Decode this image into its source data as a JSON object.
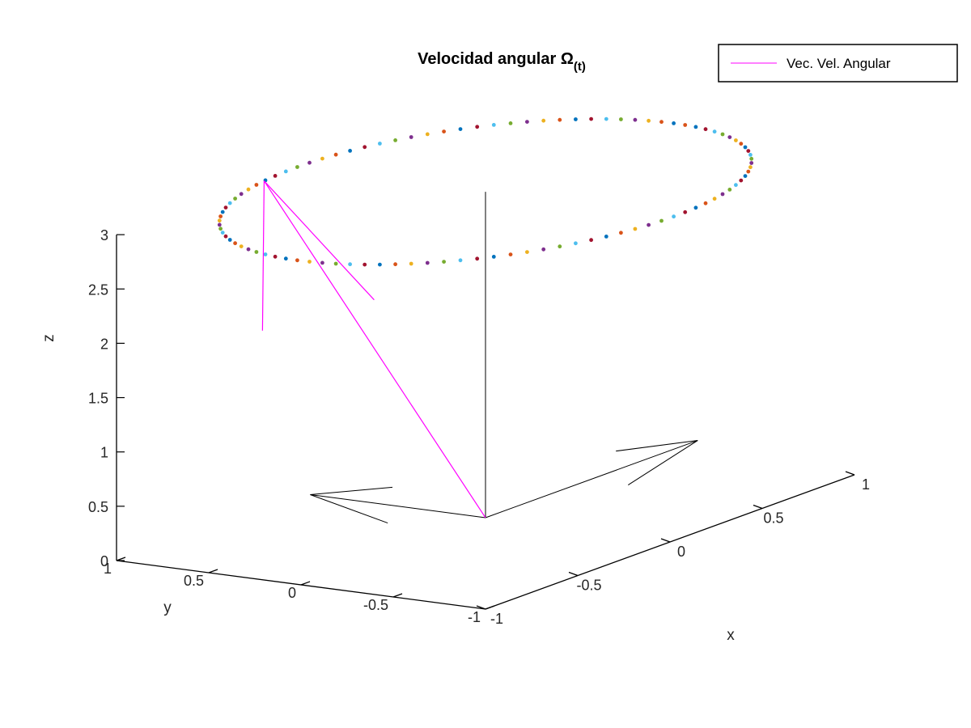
{
  "chart_data": {
    "type": "scatter3d",
    "title": "Velocidad angular Ω",
    "title_subscript": "(t)",
    "xlabel": "x",
    "ylabel": "y",
    "zlabel": "z",
    "xlim": [
      -1,
      1
    ],
    "ylim": [
      -1,
      1
    ],
    "zlim": [
      0,
      3
    ],
    "x_ticks": [
      -1,
      -0.5,
      0,
      0.5,
      1
    ],
    "x_tick_labels": [
      "-1",
      "-0.5",
      "0",
      "0.5",
      "1"
    ],
    "y_ticks": [
      -1,
      -0.5,
      0,
      0.5,
      1
    ],
    "y_tick_labels": [
      "-1",
      "-0.5",
      "0",
      "0.5",
      "1"
    ],
    "z_ticks": [
      0,
      0.5,
      1,
      1.5,
      2,
      2.5,
      3
    ],
    "z_tick_labels": [
      "0",
      "0.5",
      "1",
      "1.5",
      "2",
      "2.5",
      "3"
    ],
    "grid": false,
    "legend": {
      "position": "top-right",
      "entries": [
        {
          "label": "Vec. Vel. Angular",
          "color": "#ff00ff"
        }
      ]
    },
    "series": [
      {
        "name": "Vec. Vel. Angular",
        "kind": "vector",
        "color": "#ff00ff",
        "from": [
          0,
          0,
          0
        ],
        "to": [
          -0.2,
          1.0,
          3.0
        ]
      },
      {
        "kind": "circle_points",
        "center": [
          0,
          0,
          3
        ],
        "radius": 1.02,
        "count": 100,
        "colors": [
          "#0072bd",
          "#d95319",
          "#edb120",
          "#7e2f8e",
          "#77ac30",
          "#4dbeee",
          "#a2142f"
        ]
      },
      {
        "kind": "reference_axes",
        "color": "#000000",
        "axes": [
          {
            "from": [
              0,
              0,
              0
            ],
            "to": [
              0,
              0,
              3.0
            ]
          },
          {
            "from": [
              0,
              0,
              0
            ],
            "to": [
              1.15,
              0,
              0
            ]
          },
          {
            "from": [
              0,
              0,
              0
            ],
            "to": [
              0,
              0.95,
              0
            ]
          }
        ]
      }
    ]
  }
}
